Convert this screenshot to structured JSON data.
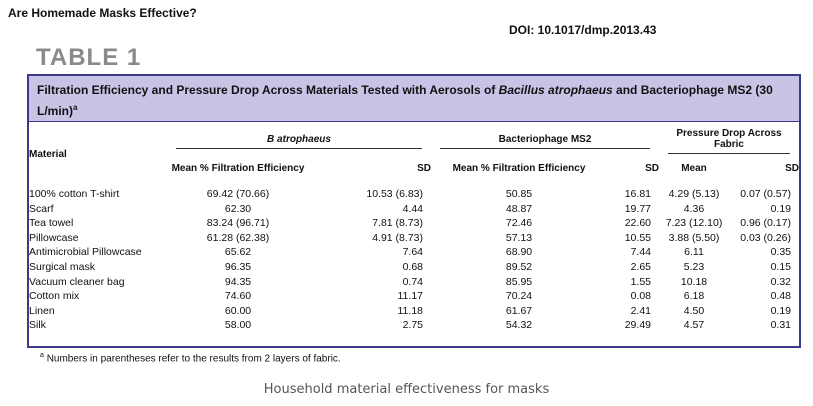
{
  "page_heading": "Are Homemade Masks Effective?",
  "doi": "DOI: 10.1017/dmp.2013.43",
  "table_label": "TABLE 1",
  "caption": {
    "text_start": "Filtration Efficiency and Pressure Drop Across Materials Tested with Aerosols of ",
    "species": "Bacillus atrophaeus",
    "text_end": " and Bacteriophage MS2 (30 L/min)",
    "marker": "a"
  },
  "header": {
    "material": "Material",
    "group_b": "B atrophaeus",
    "group_ms2": "Bacteriophage MS2",
    "group_pressure": "Pressure Drop Across Fabric",
    "mean_pct": "Mean % Filtration Efficiency",
    "sd": "SD",
    "mean": "Mean"
  },
  "rows": [
    {
      "material": "100% cotton T-shirt",
      "b_mean": "69.42 (70.66)",
      "b_sd": "10.53 (6.83)",
      "ms2_mean": "50.85",
      "ms2_sd": "16.81",
      "p_mean": "4.29 (5.13)",
      "p_sd": "0.07 (0.57)"
    },
    {
      "material": "Scarf",
      "b_mean": "62.30",
      "b_sd": "4.44",
      "ms2_mean": "48.87",
      "ms2_sd": "19.77",
      "p_mean": "4.36",
      "p_sd": "0.19"
    },
    {
      "material": "Tea towel",
      "b_mean": "83.24 (96.71)",
      "b_sd": "7.81 (8.73)",
      "ms2_mean": "72.46",
      "ms2_sd": "22.60",
      "p_mean": "7.23 (12.10)",
      "p_sd": "0.96 (0.17)"
    },
    {
      "material": "Pillowcase",
      "b_mean": "61.28 (62.38)",
      "b_sd": "4.91 (8.73)",
      "ms2_mean": "57.13",
      "ms2_sd": "10.55",
      "p_mean": "3.88 (5.50)",
      "p_sd": "0.03 (0.26)"
    },
    {
      "material": "Antimicrobial Pillowcase",
      "b_mean": "65.62",
      "b_sd": "7.64",
      "ms2_mean": "68.90",
      "ms2_sd": "7.44",
      "p_mean": "6.11",
      "p_sd": "0.35"
    },
    {
      "material": "Surgical mask",
      "b_mean": "96.35",
      "b_sd": "0.68",
      "ms2_mean": "89.52",
      "ms2_sd": "2.65",
      "p_mean": "5.23",
      "p_sd": "0.15"
    },
    {
      "material": "Vacuum cleaner bag",
      "b_mean": "94.35",
      "b_sd": "0.74",
      "ms2_mean": "85.95",
      "ms2_sd": "1.55",
      "p_mean": "10.18",
      "p_sd": "0.32"
    },
    {
      "material": "Cotton mix",
      "b_mean": "74.60",
      "b_sd": "11.17",
      "ms2_mean": "70.24",
      "ms2_sd": "0.08",
      "p_mean": "6.18",
      "p_sd": "0.48"
    },
    {
      "material": "Linen",
      "b_mean": "60.00",
      "b_sd": "11.18",
      "ms2_mean": "61.67",
      "ms2_sd": "2.41",
      "p_mean": "4.50",
      "p_sd": "0.19"
    },
    {
      "material": "Silk",
      "b_mean": "58.00",
      "b_sd": "2.75",
      "ms2_mean": "54.32",
      "ms2_sd": "29.49",
      "p_mean": "4.57",
      "p_sd": "0.31"
    }
  ],
  "footnote": {
    "marker": "a",
    "text": "Numbers in parentheses refer to the results from 2 layers of fabric."
  },
  "figure_caption": "Household material effectiveness for masks"
}
